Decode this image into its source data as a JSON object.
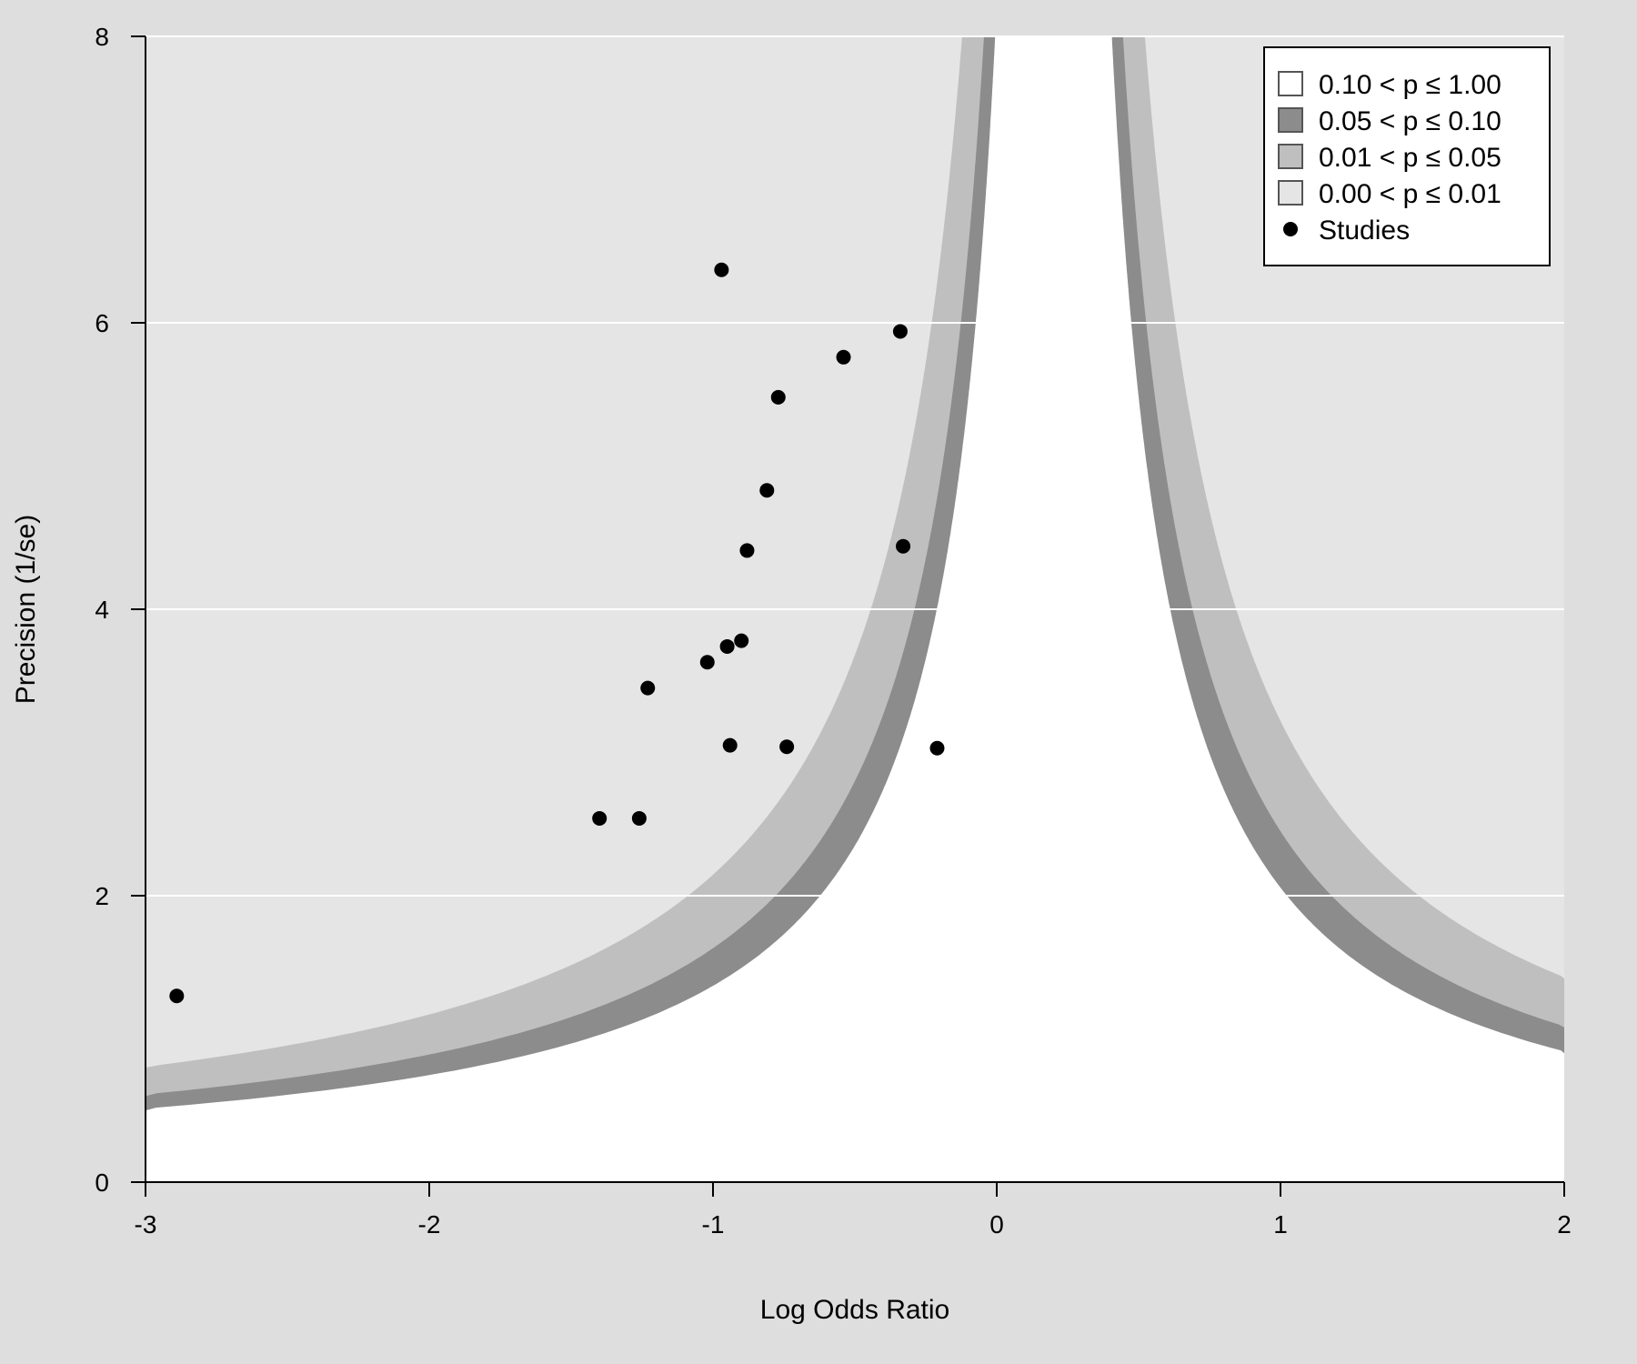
{
  "chart_data": {
    "type": "scatter",
    "title": "",
    "xlabel": "Log Odds Ratio",
    "ylabel": "Precision (1/se)",
    "xlim": [
      -3,
      2
    ],
    "ylim": [
      0,
      8
    ],
    "x_ticks": [
      "-3",
      "-2",
      "-1",
      "0",
      "1",
      "2"
    ],
    "y_ticks": [
      "0",
      "2",
      "4",
      "6",
      "8"
    ],
    "grid": "horizontal",
    "contour_center": 0.2,
    "legend_position": "top-right",
    "legend": [
      {
        "label": "0.10 < p ≤ 1.00",
        "color": "#ffffff",
        "kind": "box"
      },
      {
        "label": "0.05 < p ≤ 0.10",
        "color": "#8c8c8c",
        "kind": "box"
      },
      {
        "label": "0.01 < p ≤ 0.05",
        "color": "#bfbfbf",
        "kind": "box"
      },
      {
        "label": "0.00 < p ≤ 0.01",
        "color": "#e5e5e5",
        "kind": "box"
      },
      {
        "label": "Studies",
        "color": "#000000",
        "kind": "point"
      }
    ],
    "series": [
      {
        "name": "Studies",
        "points": [
          {
            "x": -2.89,
            "y": 1.3
          },
          {
            "x": -1.4,
            "y": 2.54
          },
          {
            "x": -1.26,
            "y": 2.54
          },
          {
            "x": -1.23,
            "y": 3.45
          },
          {
            "x": -1.02,
            "y": 3.63
          },
          {
            "x": -0.97,
            "y": 6.37
          },
          {
            "x": -0.95,
            "y": 3.74
          },
          {
            "x": -0.94,
            "y": 3.05
          },
          {
            "x": -0.9,
            "y": 3.78
          },
          {
            "x": -0.88,
            "y": 4.41
          },
          {
            "x": -0.81,
            "y": 4.83
          },
          {
            "x": -0.77,
            "y": 5.48
          },
          {
            "x": -0.74,
            "y": 3.04
          },
          {
            "x": -0.54,
            "y": 5.76
          },
          {
            "x": -0.34,
            "y": 5.94
          },
          {
            "x": -0.33,
            "y": 4.44
          },
          {
            "x": -0.21,
            "y": 3.03
          }
        ]
      }
    ]
  },
  "colors": {
    "background": "#dedede",
    "plot_bg": "#e5e5e5",
    "band_p01": "#bfbfbf",
    "band_p05": "#8c8c8c",
    "band_ns": "#ffffff",
    "grid": "#ffffff",
    "points": "#000000"
  }
}
